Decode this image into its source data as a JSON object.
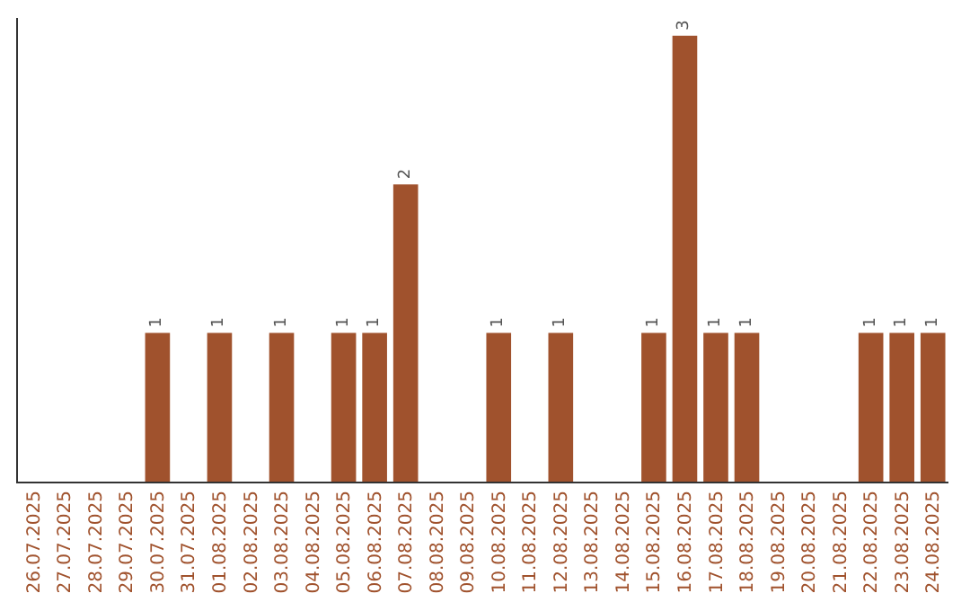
{
  "chart_data": {
    "type": "bar",
    "categories": [
      "26.07.2025",
      "27.07.2025",
      "28.07.2025",
      "29.07.2025",
      "30.07.2025",
      "31.07.2025",
      "01.08.2025",
      "02.08.2025",
      "03.08.2025",
      "04.08.2025",
      "05.08.2025",
      "06.08.2025",
      "07.08.2025",
      "08.08.2025",
      "09.08.2025",
      "10.08.2025",
      "11.08.2025",
      "12.08.2025",
      "13.08.2025",
      "14.08.2025",
      "15.08.2025",
      "16.08.2025",
      "17.08.2025",
      "18.08.2025",
      "19.08.2025",
      "20.08.2025",
      "21.08.2025",
      "22.08.2025",
      "23.08.2025",
      "24.08.2025"
    ],
    "values": [
      0,
      0,
      0,
      0,
      1,
      0,
      1,
      0,
      1,
      0,
      1,
      1,
      2,
      0,
      0,
      1,
      0,
      1,
      0,
      0,
      1,
      3,
      1,
      1,
      0,
      0,
      0,
      1,
      1,
      1
    ],
    "value_labels": [
      null,
      null,
      null,
      null,
      "1",
      null,
      "1",
      null,
      "1",
      null,
      "1",
      "1",
      "2",
      null,
      null,
      "1",
      null,
      "1",
      null,
      null,
      "1",
      "3",
      "1",
      "1",
      null,
      null,
      null,
      "1",
      "1",
      "1"
    ],
    "color": "#a0522d",
    "tick_labels": "x",
    "legend": false
  }
}
